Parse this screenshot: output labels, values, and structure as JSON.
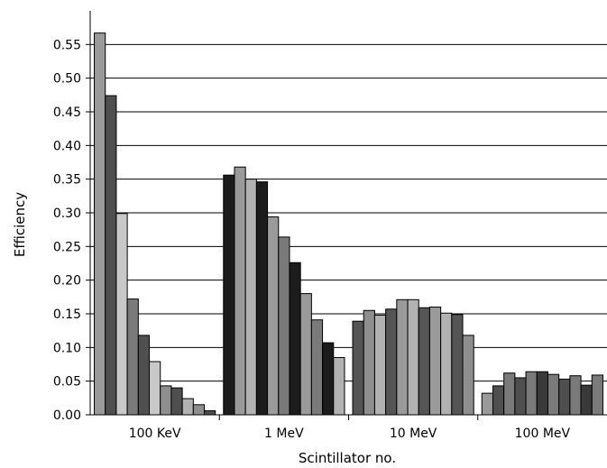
{
  "chart_data": {
    "type": "bar",
    "title": "",
    "xlabel": "Scintillator no.",
    "ylabel": "Efficiency",
    "ylim": [
      0,
      0.6
    ],
    "yticks": [
      0.0,
      0.05,
      0.1,
      0.15,
      0.2,
      0.25,
      0.3,
      0.35,
      0.4,
      0.45,
      0.5,
      0.55
    ],
    "ytick_labels": [
      "0.00",
      "0.05",
      "0.10",
      "0.15",
      "0.20",
      "0.25",
      "0.30",
      "0.35",
      "0.40",
      "0.45",
      "0.50",
      "0.55"
    ],
    "grid": "horizontal",
    "legend": "none",
    "categories": [
      "100 KeV",
      "1 MeV",
      "10 MeV",
      "100 MeV"
    ],
    "bar_colors": [
      "#1c1c1c",
      "#9a9a9a",
      "#4f4f4f",
      "#c8c8c8",
      "#7a7a7a",
      "#8e8e8e",
      "#3a3a3a",
      "#b2b2b2",
      "#555555",
      "#2a2a2a",
      "#a6a6a6"
    ],
    "groups": [
      {
        "category": "100 KeV",
        "values": [
          0.567,
          0.474,
          0.299,
          0.172,
          0.118,
          0.079,
          0.043,
          0.04,
          0.024,
          0.015,
          0.006
        ],
        "colors": [
          "#9a9a9a",
          "#4f4f4f",
          "#c8c8c8",
          "#7a7a7a",
          "#4f4f4f",
          "#c8c8c8",
          "#8e8e8e",
          "#4f4f4f",
          "#b2b2b2",
          "#8e8e8e",
          "#4f4f4f"
        ]
      },
      {
        "category": "1 MeV",
        "values": [
          0.356,
          0.368,
          0.35,
          0.346,
          0.294,
          0.264,
          0.226,
          0.18,
          0.141,
          0.107,
          0.085
        ],
        "colors": [
          "#1c1c1c",
          "#9a9a9a",
          "#b2b2b2",
          "#1c1c1c",
          "#9a9a9a",
          "#7a7a7a",
          "#1c1c1c",
          "#9a9a9a",
          "#7a7a7a",
          "#1c1c1c",
          "#b2b2b2"
        ]
      },
      {
        "category": "10 MeV",
        "values": [
          0.139,
          0.155,
          0.148,
          0.157,
          0.171,
          0.171,
          0.159,
          0.16,
          0.151,
          0.149,
          0.118
        ],
        "colors": [
          "#555555",
          "#8e8e8e",
          "#b2b2b2",
          "#555555",
          "#9a9a9a",
          "#b2b2b2",
          "#555555",
          "#9a9a9a",
          "#b2b2b2",
          "#555555",
          "#8e8e8e"
        ]
      },
      {
        "category": "100 MeV",
        "values": [
          0.032,
          0.043,
          0.062,
          0.055,
          0.064,
          0.064,
          0.06,
          0.053,
          0.058,
          0.044,
          0.059
        ],
        "colors": [
          "#9a9a9a",
          "#4f4f4f",
          "#7a7a7a",
          "#4f4f4f",
          "#7a7a7a",
          "#3a3a3a",
          "#7a7a7a",
          "#4f4f4f",
          "#7a7a7a",
          "#3a3a3a",
          "#7a7a7a"
        ]
      }
    ]
  }
}
